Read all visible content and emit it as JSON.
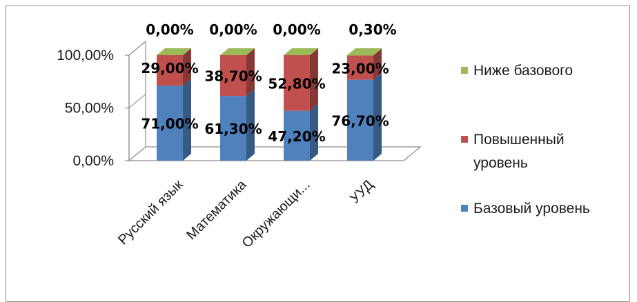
{
  "chart_data": {
    "type": "bar",
    "stacked": true,
    "three_d": true,
    "categories": [
      "Русский язык",
      "Математика",
      "Окружающи...",
      "УУД"
    ],
    "series": [
      {
        "name": "Базовый уровень",
        "values": [
          71.0,
          61.3,
          47.2,
          76.7
        ],
        "labels": [
          "71,00%",
          "61,30%",
          "47,20%",
          "76,70%"
        ],
        "color": "#4f81bd"
      },
      {
        "name": "Повышенный уровень",
        "values": [
          29.0,
          38.7,
          52.8,
          23.0
        ],
        "labels": [
          "29,00%",
          "38,70%",
          "52,80%",
          "23,00%"
        ],
        "color": "#c0504d"
      },
      {
        "name": "Ниже базового",
        "values": [
          0.0,
          0.0,
          0.0,
          0.3
        ],
        "labels": [
          "0,00%",
          "0,00%",
          "0,00%",
          "0,30%"
        ],
        "color": "#9bbb59"
      }
    ],
    "ylim": [
      0,
      100
    ],
    "yticks": [
      0,
      50,
      100
    ],
    "ytick_labels": [
      "0,00%",
      "50,00%",
      "100,00%"
    ],
    "legend": {
      "position": "right",
      "entries": [
        {
          "lines": [
            "Ниже базового"
          ],
          "color": "#9bbb59"
        },
        {
          "lines": [
            "Повышенный",
            "уровень"
          ],
          "color": "#c0504d"
        },
        {
          "lines": [
            "Базовый уровень"
          ],
          "color": "#4f81bd"
        }
      ]
    },
    "title": "",
    "xlabel": "",
    "ylabel": ""
  }
}
